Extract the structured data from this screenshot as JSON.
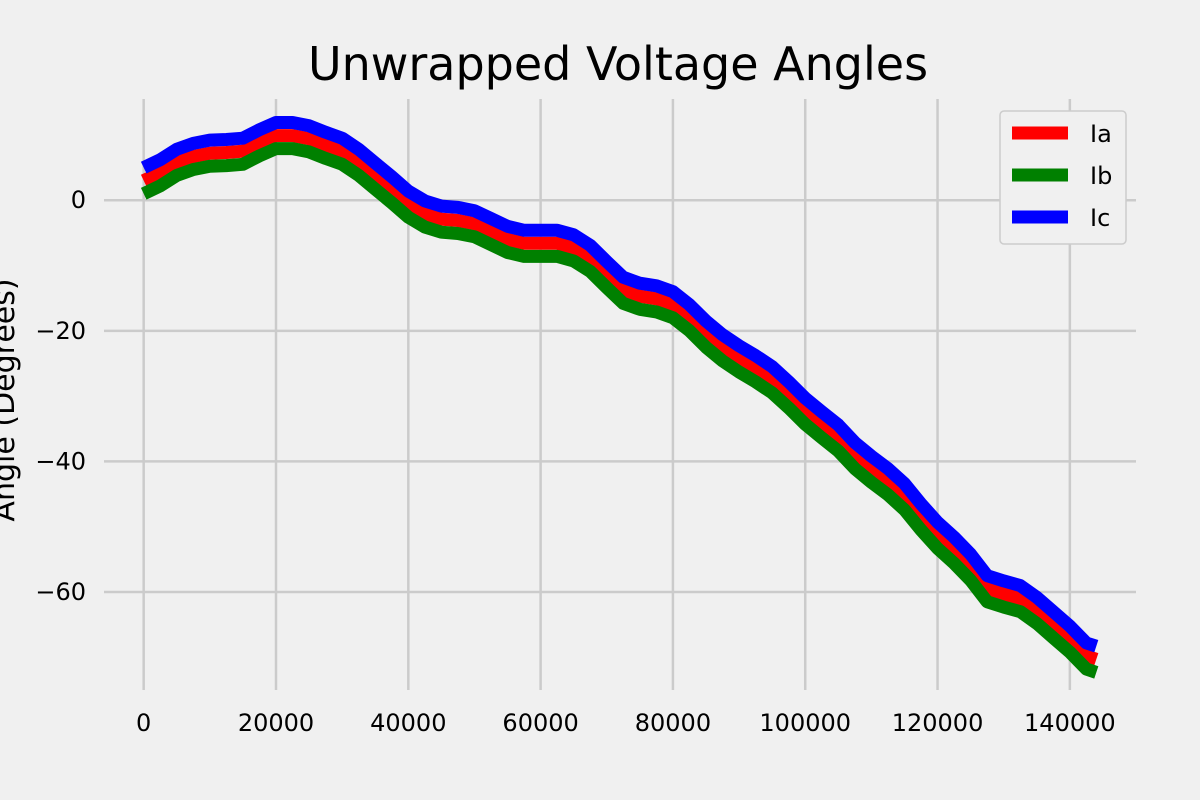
{
  "chart_data": {
    "type": "line",
    "title": "Unwrapped Voltage Angles",
    "xlabel": "",
    "ylabel": "Angle (Degrees)",
    "xlim": [
      -6000,
      150000
    ],
    "ylim": [
      -75,
      15.5
    ],
    "x_ticks": [
      0,
      20000,
      40000,
      60000,
      80000,
      100000,
      120000,
      140000
    ],
    "y_ticks": [
      0,
      -20,
      -40,
      -60
    ],
    "grid": true,
    "legend_position": "top-right",
    "x": [
      0,
      2500,
      5000,
      7500,
      10000,
      12500,
      15000,
      17500,
      20000,
      22500,
      25000,
      27500,
      30000,
      32500,
      35000,
      37500,
      40000,
      42500,
      45000,
      47500,
      50000,
      52500,
      55000,
      57500,
      60000,
      62500,
      65000,
      67500,
      70000,
      72500,
      75000,
      77500,
      80000,
      82500,
      85000,
      87500,
      90000,
      92500,
      95000,
      97500,
      100000,
      102500,
      105000,
      107500,
      110000,
      112500,
      115000,
      117500,
      120000,
      122500,
      125000,
      127500,
      130000,
      132500,
      135000,
      137500,
      140000,
      142500,
      144000
    ],
    "series": [
      {
        "name": "Ia",
        "color": "#ff0000",
        "values": [
          3.0,
          4.2,
          5.8,
          6.7,
          7.2,
          7.3,
          7.5,
          8.8,
          9.9,
          9.9,
          9.4,
          8.4,
          7.5,
          5.8,
          3.7,
          1.6,
          -0.6,
          -2.1,
          -2.9,
          -3.1,
          -3.6,
          -4.8,
          -6.0,
          -6.6,
          -6.6,
          -6.6,
          -7.3,
          -8.9,
          -11.4,
          -13.8,
          -14.7,
          -15.1,
          -16.0,
          -18.0,
          -20.5,
          -22.6,
          -24.3,
          -25.8,
          -27.5,
          -29.8,
          -32.3,
          -34.4,
          -36.4,
          -39.1,
          -41.2,
          -43.1,
          -45.4,
          -48.5,
          -51.3,
          -53.6,
          -56.2,
          -59.5,
          -60.3,
          -61.0,
          -62.8,
          -65.0,
          -67.2,
          -69.8,
          -70.3
        ]
      },
      {
        "name": "Ib",
        "color": "#008000",
        "values": [
          1.0,
          2.2,
          3.8,
          4.7,
          5.2,
          5.3,
          5.5,
          6.8,
          7.9,
          7.9,
          7.4,
          6.4,
          5.5,
          3.8,
          1.7,
          -0.4,
          -2.6,
          -4.1,
          -4.9,
          -5.1,
          -5.6,
          -6.8,
          -8.0,
          -8.6,
          -8.6,
          -8.6,
          -9.3,
          -10.9,
          -13.4,
          -15.8,
          -16.7,
          -17.1,
          -18.0,
          -20.0,
          -22.5,
          -24.6,
          -26.3,
          -27.8,
          -29.5,
          -31.8,
          -34.3,
          -36.4,
          -38.4,
          -41.1,
          -43.2,
          -45.1,
          -47.4,
          -50.5,
          -53.3,
          -55.6,
          -58.2,
          -61.5,
          -62.3,
          -63.0,
          -64.8,
          -67.0,
          -69.2,
          -71.8,
          -72.3
        ]
      },
      {
        "name": "Ic",
        "color": "#0000ff",
        "values": [
          5.0,
          6.2,
          7.8,
          8.7,
          9.2,
          9.3,
          9.5,
          10.8,
          11.9,
          11.9,
          11.4,
          10.4,
          9.5,
          7.8,
          5.7,
          3.6,
          1.4,
          -0.1,
          -0.9,
          -1.1,
          -1.6,
          -2.8,
          -4.0,
          -4.6,
          -4.6,
          -4.6,
          -5.3,
          -6.9,
          -9.4,
          -11.8,
          -12.7,
          -13.1,
          -14.0,
          -16.0,
          -18.5,
          -20.6,
          -22.3,
          -23.8,
          -25.5,
          -27.8,
          -30.3,
          -32.4,
          -34.4,
          -37.1,
          -39.2,
          -41.1,
          -43.4,
          -46.5,
          -49.3,
          -51.6,
          -54.2,
          -57.5,
          -58.3,
          -59.0,
          -60.8,
          -63.0,
          -65.2,
          -67.8,
          -68.3
        ]
      }
    ]
  }
}
